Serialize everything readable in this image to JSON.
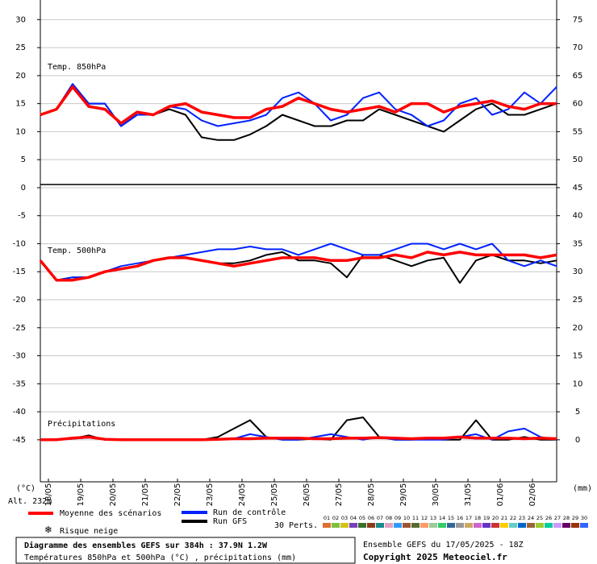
{
  "chart_data": {
    "type": "line",
    "title": "Diagramme des ensembles GEFS sur 384h : 37.9N 1.2W",
    "subtitle": "Températures 850hPa et 500hPa (°C) , précipitations (mm)",
    "run_info": "Ensemble GEFS du 17/05/2025 - 18Z",
    "copyright": "Copyright 2025 Meteociel.fr",
    "y_label": "(°C)",
    "y2_label": "(mm)",
    "altitude": "Alt. 232m",
    "panel_labels": {
      "t850": "Temp. 850hPa",
      "t500": "Temp. 500hPa",
      "precip": "Précipitations"
    },
    "snow_label": "Risque neige",
    "snow_color": "#3a9ad9",
    "perturbations_label": "30 Perts.",
    "perturbations": [
      {
        "label": "01",
        "color": "#e07030"
      },
      {
        "label": "02",
        "color": "#7fbf3f"
      },
      {
        "label": "03",
        "color": "#d4c21a"
      },
      {
        "label": "04",
        "color": "#7a3fbf"
      },
      {
        "label": "05",
        "color": "#3a6f2a"
      },
      {
        "label": "06",
        "color": "#8a3a1a"
      },
      {
        "label": "07",
        "color": "#1a8a8a"
      },
      {
        "label": "08",
        "color": "#e3a3c0"
      },
      {
        "label": "09",
        "color": "#3399ff"
      },
      {
        "label": "10",
        "color": "#a0522d"
      },
      {
        "label": "11",
        "color": "#556b2f"
      },
      {
        "label": "12",
        "color": "#ff9966"
      },
      {
        "label": "13",
        "color": "#99cc99"
      },
      {
        "label": "14",
        "color": "#33cc66"
      },
      {
        "label": "15",
        "color": "#336699"
      },
      {
        "label": "16",
        "color": "#999999"
      },
      {
        "label": "17",
        "color": "#ccaa66"
      },
      {
        "label": "18",
        "color": "#cc66cc"
      },
      {
        "label": "19",
        "color": "#6633cc"
      },
      {
        "label": "20",
        "color": "#cc3333"
      },
      {
        "label": "21",
        "color": "#ffcc00"
      },
      {
        "label": "22",
        "color": "#66cccc"
      },
      {
        "label": "23",
        "color": "#0066cc"
      },
      {
        "label": "24",
        "color": "#996633"
      },
      {
        "label": "25",
        "color": "#99cc33"
      },
      {
        "label": "26",
        "color": "#00cc99"
      },
      {
        "label": "27",
        "color": "#cc99ff"
      },
      {
        "label": "28",
        "color": "#660066"
      },
      {
        "label": "29",
        "color": "#993300"
      },
      {
        "label": "30",
        "color": "#3366ff"
      }
    ],
    "x": [
      0,
      12,
      24,
      36,
      48,
      60,
      72,
      84,
      96,
      108,
      120,
      132,
      144,
      156,
      168,
      180,
      192,
      204,
      216,
      228,
      240,
      252,
      264,
      276,
      288,
      300,
      312,
      324,
      336,
      348,
      360,
      372,
      384
    ],
    "xlim": [
      0,
      384
    ],
    "xticks": [
      {
        "value": 6,
        "label": "18/05"
      },
      {
        "value": 30,
        "label": "19/05"
      },
      {
        "value": 54,
        "label": "20/05"
      },
      {
        "value": 78,
        "label": "21/05"
      },
      {
        "value": 102,
        "label": "22/05"
      },
      {
        "value": 126,
        "label": "23/05"
      },
      {
        "value": 150,
        "label": "24/05"
      },
      {
        "value": 174,
        "label": "25/05"
      },
      {
        "value": 198,
        "label": "26/05"
      },
      {
        "value": 222,
        "label": "27/05"
      },
      {
        "value": 246,
        "label": "28/05"
      },
      {
        "value": 270,
        "label": "29/05"
      },
      {
        "value": 294,
        "label": "30/05"
      },
      {
        "value": 318,
        "label": "31/05"
      },
      {
        "value": 342,
        "label": "01/06"
      },
      {
        "value": 366,
        "label": "02/06"
      }
    ],
    "ylim": [
      -52.5,
      33.5
    ],
    "yticks": [
      30,
      25,
      20,
      15,
      10,
      5,
      0,
      -5,
      -10,
      -15,
      -20,
      -25,
      -30,
      -35,
      -40,
      -45
    ],
    "y2lim": [
      -7.5,
      78.5
    ],
    "y2ticks": [
      75,
      70,
      65,
      60,
      55,
      50,
      45,
      40,
      35,
      30,
      25,
      20,
      15,
      10,
      5,
      0
    ],
    "grid": true,
    "series": [
      {
        "name": "Moyenne des scénarios",
        "color": "#ff0000",
        "t850": [
          13,
          14,
          18,
          14.5,
          14,
          11.5,
          13.5,
          13,
          14.5,
          15,
          13.5,
          13,
          12.5,
          12.5,
          14,
          14.5,
          16,
          15,
          14,
          13.5,
          14,
          14.5,
          13.5,
          15,
          15,
          13.5,
          14.5,
          15,
          15.5,
          14.5,
          14,
          15,
          15
        ],
        "t500": [
          -13,
          -16.5,
          -16.5,
          -16,
          -15,
          -14.5,
          -14,
          -13,
          -12.5,
          -12.5,
          -13,
          -13.5,
          -14,
          -13.5,
          -13,
          -12.5,
          -12.5,
          -12.5,
          -13,
          -13,
          -12.5,
          -12.5,
          -12,
          -12.5,
          -11.5,
          -12,
          -11.5,
          -12,
          -12,
          -12,
          -12,
          -12.5,
          -12
        ],
        "precip": [
          0,
          0,
          0.3,
          0.5,
          0.1,
          0,
          0,
          0,
          0,
          0,
          0,
          0.1,
          0.2,
          0.2,
          0.3,
          0.3,
          0.3,
          0.2,
          0.2,
          0.3,
          0.3,
          0.4,
          0.3,
          0.2,
          0.3,
          0.3,
          0.5,
          0.3,
          0.3,
          0.3,
          0.2,
          0.3,
          0.2
        ]
      },
      {
        "name": "Run de contrôle",
        "color": "#0022ff",
        "t850": [
          13,
          14,
          18.5,
          15,
          15,
          11,
          13,
          13,
          14.5,
          14,
          12,
          11,
          11.5,
          12,
          13,
          16,
          17,
          15,
          12,
          13,
          16,
          17,
          14,
          13,
          11,
          12,
          15,
          16,
          13,
          14,
          17,
          15,
          18
        ],
        "t500": [
          -13,
          -16.5,
          -16,
          -16,
          -15,
          -14,
          -13.5,
          -13,
          -12.5,
          -12,
          -11.5,
          -11,
          -11,
          -10.5,
          -11,
          -11,
          -12,
          -11,
          -10,
          -11,
          -12,
          -12,
          -11,
          -10,
          -10,
          -11,
          -10,
          -11,
          -10,
          -13,
          -14,
          -13,
          -14
        ],
        "precip": [
          0,
          0,
          0.2,
          0.4,
          0,
          0,
          0,
          0,
          0,
          0,
          0,
          0,
          0.2,
          1,
          0.5,
          0,
          0,
          0.5,
          1,
          0.5,
          0,
          0.5,
          0,
          0,
          0,
          0,
          0.5,
          1,
          0,
          1.5,
          2,
          0.5,
          0
        ]
      },
      {
        "name": "Run GFS",
        "color": "#000000",
        "t850": [
          13,
          14,
          18.5,
          15,
          15,
          11,
          13,
          13,
          14,
          13,
          9,
          8.5,
          8.5,
          9.5,
          11,
          13,
          12,
          11,
          11,
          12,
          12,
          14,
          13,
          12,
          11,
          10,
          12,
          14,
          15,
          13,
          13,
          14,
          15
        ],
        "t500": [
          -13,
          -16.5,
          -16,
          -16,
          -15,
          -14.5,
          -14,
          -13,
          -12.5,
          -12.5,
          -13,
          -13.5,
          -13.5,
          -13,
          -12,
          -11.5,
          -13,
          -13,
          -13.5,
          -16,
          -12,
          -12,
          -13,
          -14,
          -13,
          -12.5,
          -17,
          -13,
          -12,
          -13,
          -13,
          -13.5,
          -13
        ],
        "precip": [
          0,
          0,
          0.2,
          0.8,
          0,
          0,
          0,
          0,
          0,
          0,
          0,
          0.5,
          2,
          3.5,
          0.5,
          0,
          0,
          0.2,
          0,
          3.5,
          4,
          0.5,
          0,
          0,
          0.2,
          0,
          0,
          3.5,
          0,
          0,
          0.5,
          0,
          0
        ]
      }
    ]
  }
}
